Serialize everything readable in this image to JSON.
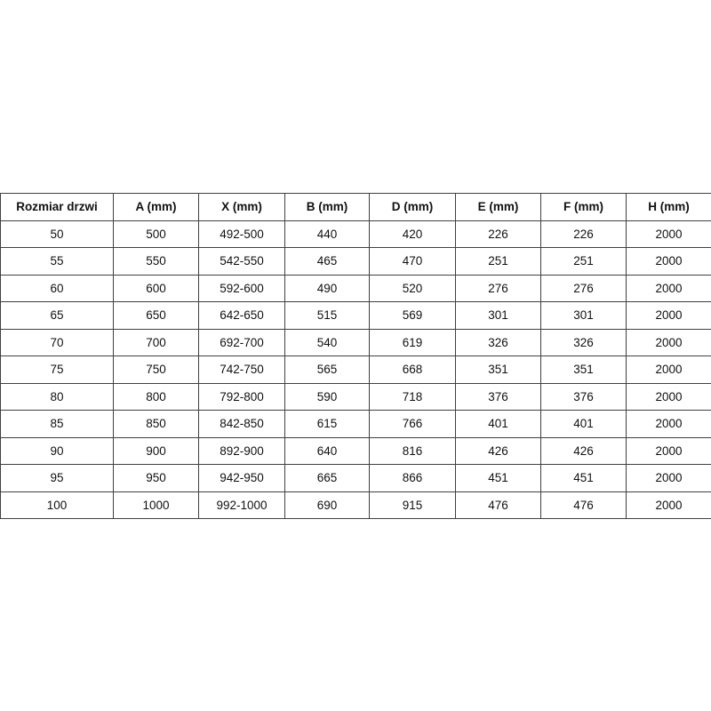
{
  "table": {
    "headers": [
      "Rozmiar drzwi",
      "A (mm)",
      "X (mm)",
      "B (mm)",
      "D (mm)",
      "E (mm)",
      "F (mm)",
      "H (mm)"
    ],
    "rows": [
      [
        "50",
        "500",
        "492-500",
        "440",
        "420",
        "226",
        "226",
        "2000"
      ],
      [
        "55",
        "550",
        "542-550",
        "465",
        "470",
        "251",
        "251",
        "2000"
      ],
      [
        "60",
        "600",
        "592-600",
        "490",
        "520",
        "276",
        "276",
        "2000"
      ],
      [
        "65",
        "650",
        "642-650",
        "515",
        "569",
        "301",
        "301",
        "2000"
      ],
      [
        "70",
        "700",
        "692-700",
        "540",
        "619",
        "326",
        "326",
        "2000"
      ],
      [
        "75",
        "750",
        "742-750",
        "565",
        "668",
        "351",
        "351",
        "2000"
      ],
      [
        "80",
        "800",
        "792-800",
        "590",
        "718",
        "376",
        "376",
        "2000"
      ],
      [
        "85",
        "850",
        "842-850",
        "615",
        "766",
        "401",
        "401",
        "2000"
      ],
      [
        "90",
        "900",
        "892-900",
        "640",
        "816",
        "426",
        "426",
        "2000"
      ],
      [
        "95",
        "950",
        "942-950",
        "665",
        "866",
        "451",
        "451",
        "2000"
      ],
      [
        "100",
        "1000",
        "992-1000",
        "690",
        "915",
        "476",
        "476",
        "2000"
      ]
    ]
  }
}
